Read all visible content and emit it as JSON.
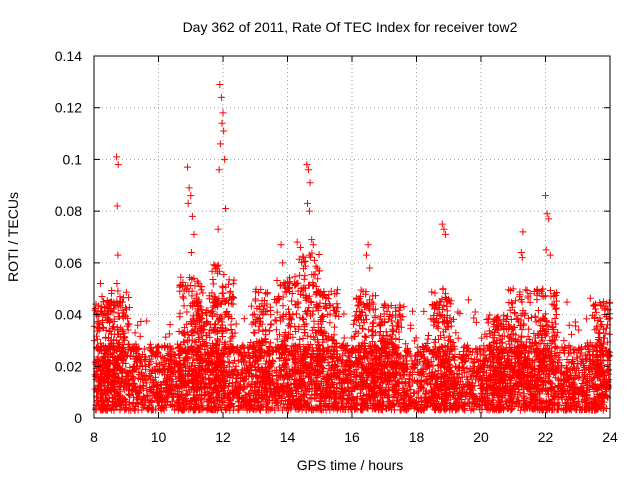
{
  "chart_data": {
    "type": "scatter",
    "title": "Day 362 of 2011, Rate Of TEC Index for receiver tow2",
    "xlabel": "GPS time / hours",
    "ylabel": "ROTI / TECUs",
    "xlim": [
      8,
      24
    ],
    "ylim": [
      0,
      0.14
    ],
    "xticks": [
      8,
      10,
      12,
      14,
      16,
      18,
      20,
      22,
      24
    ],
    "xtick_labels": [
      "8",
      "10",
      "12",
      "14",
      "16",
      "18",
      "20",
      "22",
      "24"
    ],
    "yticks": [
      0,
      0.02,
      0.04,
      0.06,
      0.08,
      0.1,
      0.12,
      0.14
    ],
    "ytick_labels": [
      "0",
      "0.02",
      "0.04",
      "0.06",
      "0.08",
      "0.1",
      "0.12",
      "0.14"
    ],
    "grid": true,
    "marker": "+",
    "series_color": "#ff0000",
    "baseline_band": {
      "low": 0.003,
      "high": 0.028
    },
    "peaks": [
      {
        "x": [
          8.7,
          8.75,
          8.72,
          8.74,
          8.71
        ],
        "y": [
          0.101,
          0.098,
          0.082,
          0.063,
          0.052
        ]
      },
      {
        "x": [
          8.2,
          8.25,
          8.3,
          8.22,
          8.28
        ],
        "y": [
          0.052,
          0.047,
          0.045,
          0.043,
          0.04
        ]
      },
      {
        "x": [
          10.9,
          10.95,
          11.0,
          10.92,
          11.05,
          11.1,
          11.02
        ],
        "y": [
          0.097,
          0.089,
          0.086,
          0.083,
          0.078,
          0.071,
          0.064
        ]
      },
      {
        "x": [
          11.9,
          11.95,
          12.0,
          11.97,
          12.02,
          11.92,
          12.05,
          11.88,
          12.08,
          11.85
        ],
        "y": [
          0.129,
          0.124,
          0.118,
          0.114,
          0.111,
          0.106,
          0.1,
          0.096,
          0.081,
          0.073
        ]
      },
      {
        "x": [
          14.6,
          14.65,
          14.7,
          14.62,
          14.68,
          14.75,
          14.8
        ],
        "y": [
          0.098,
          0.096,
          0.091,
          0.083,
          0.08,
          0.069,
          0.067
        ]
      },
      {
        "x": [
          14.3,
          14.4,
          14.5
        ],
        "y": [
          0.068,
          0.066,
          0.062
        ]
      },
      {
        "x": [
          13.8,
          13.85
        ],
        "y": [
          0.067,
          0.06
        ]
      },
      {
        "x": [
          16.5,
          16.45,
          16.55
        ],
        "y": [
          0.067,
          0.063,
          0.058
        ]
      },
      {
        "x": [
          18.8,
          18.85,
          18.9,
          18.82
        ],
        "y": [
          0.075,
          0.073,
          0.071,
          0.05
        ]
      },
      {
        "x": [
          21.3,
          21.25,
          21.28
        ],
        "y": [
          0.072,
          0.064,
          0.062
        ]
      },
      {
        "x": [
          22.0,
          22.05,
          22.1,
          22.02,
          22.15
        ],
        "y": [
          0.086,
          0.079,
          0.077,
          0.065,
          0.063
        ]
      },
      {
        "x": [
          23.8,
          23.85
        ],
        "y": [
          0.045,
          0.043
        ]
      }
    ]
  }
}
